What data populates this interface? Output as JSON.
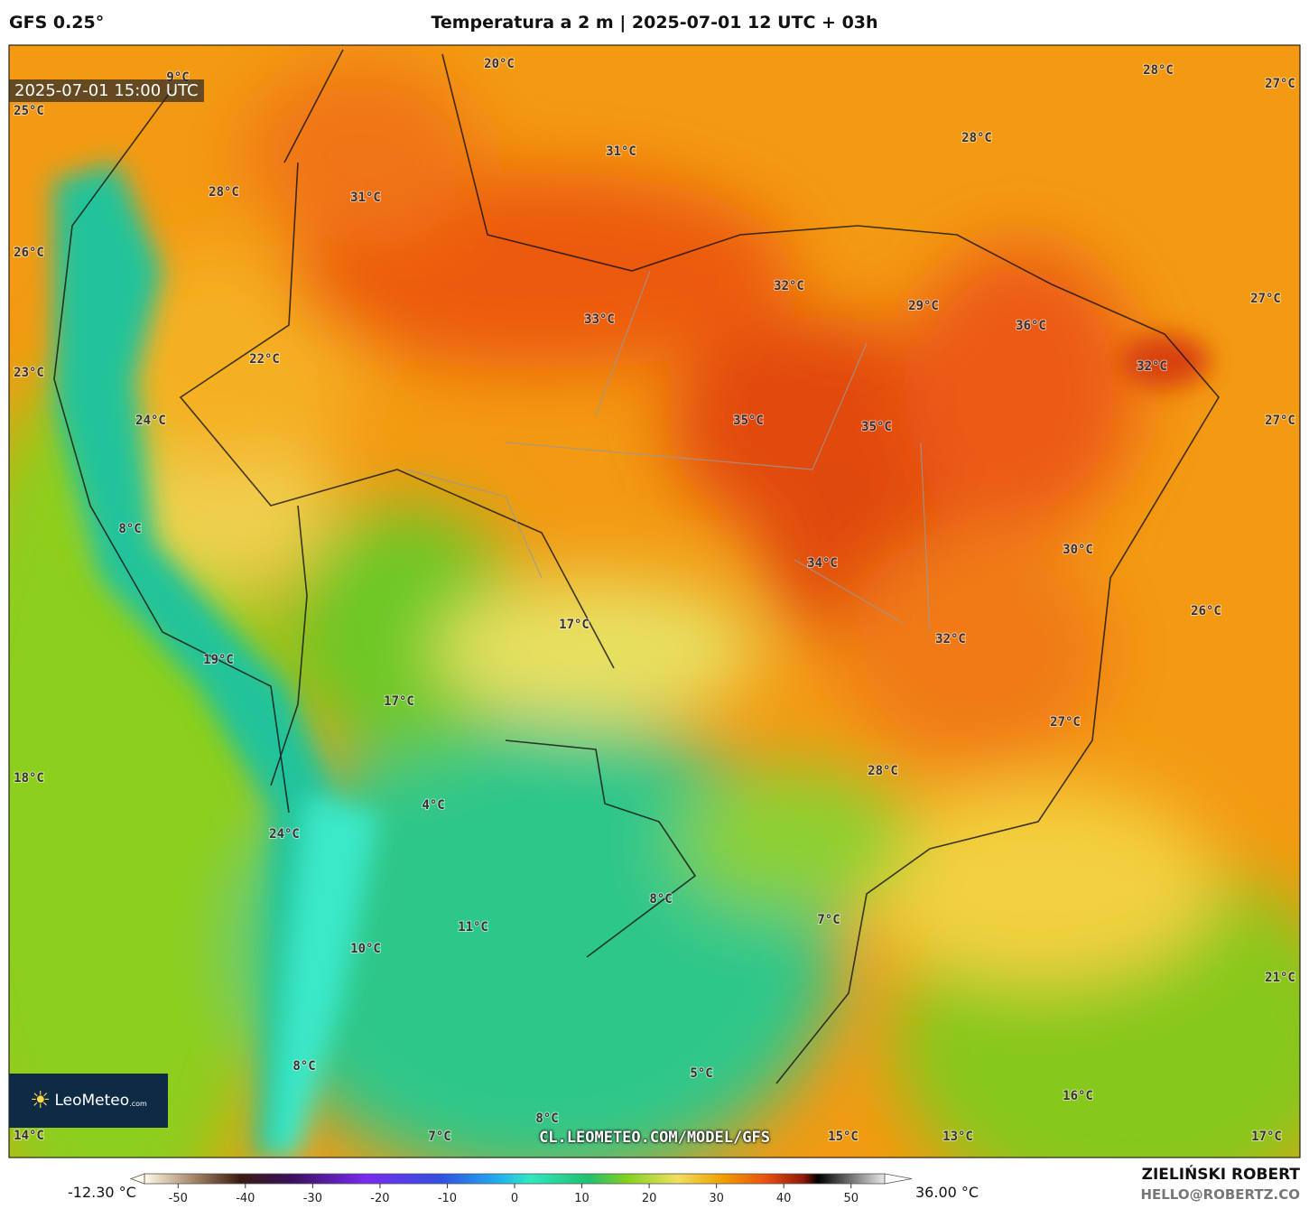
{
  "header": {
    "model": "GFS 0.25°",
    "title": "Temperatura a 2 m | 2025-07-01 12 UTC + 03h"
  },
  "valid_time": "2025-07-01 15:00 UTC",
  "map_labels": [
    "20°C",
    "28°C",
    "27°C",
    "9°C",
    "25°C",
    "28°C",
    "31°C",
    "28°C",
    "31°C",
    "26°C",
    "32°C",
    "29°C",
    "27°C",
    "33°C",
    "36°C",
    "22°C",
    "32°C",
    "23°C",
    "24°C",
    "35°C",
    "35°C",
    "27°C",
    "8°C",
    "30°C",
    "34°C",
    "26°C",
    "17°C",
    "32°C",
    "19°C",
    "17°C",
    "27°C",
    "28°C",
    "18°C",
    "4°C",
    "24°C",
    "8°C",
    "7°C",
    "11°C",
    "10°C",
    "21°C",
    "8°C",
    "5°C",
    "16°C",
    "8°C",
    "14°C",
    "7°C",
    "15°C",
    "13°C",
    "17°C"
  ],
  "logo": {
    "name": "LeoMeteo",
    "suffix": ".com"
  },
  "url": "CL.LEOMETEO.COM/MODEL/GFS",
  "colorbar": {
    "min_label": "-12.30 °C",
    "max_label": "36.00 °C",
    "ticks": [
      -50,
      -40,
      -30,
      -20,
      -10,
      0,
      10,
      20,
      30,
      40,
      50
    ],
    "lim": [
      -55,
      55
    ]
  },
  "footer": {
    "author": "ZIELIŃSKI ROBERT",
    "email": "HELLO@ROBERTZ.CO"
  }
}
